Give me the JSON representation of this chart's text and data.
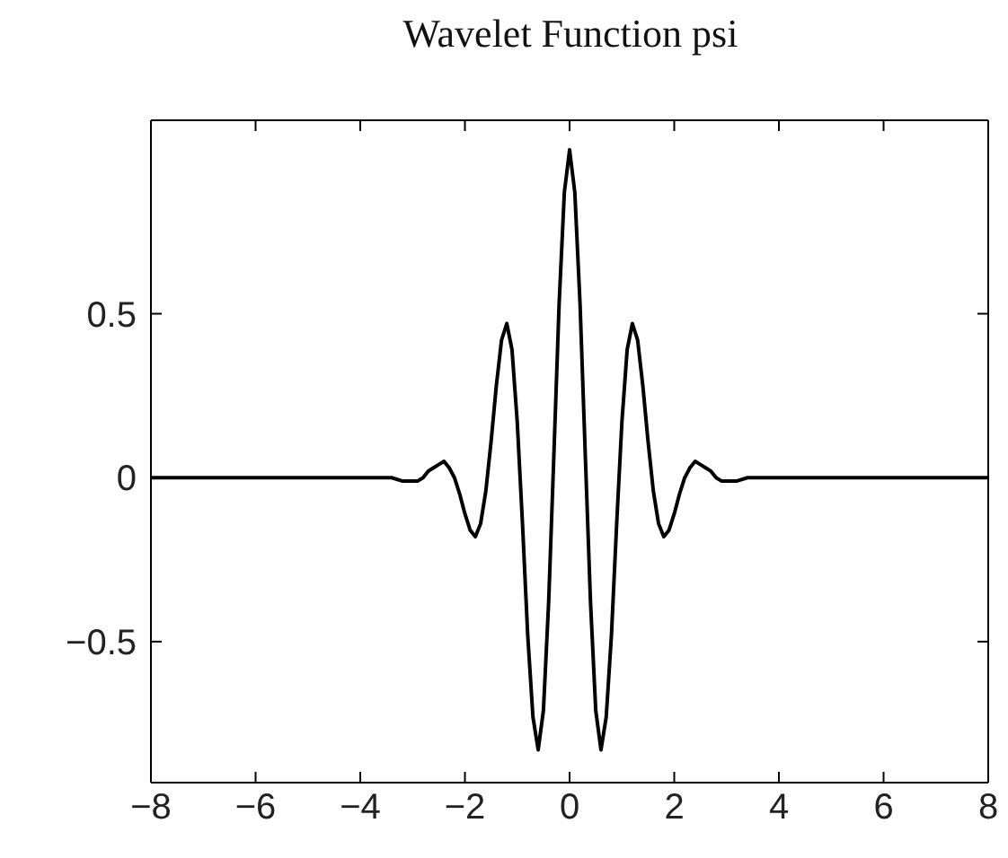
{
  "chart_data": {
    "type": "line",
    "title": "Wavelet Function psi",
    "x": [
      -8,
      -3.6,
      -3.4,
      -3.2,
      -3,
      -2.9,
      -2.8,
      -2.7,
      -2.6,
      -2.5,
      -2.4,
      -2.3,
      -2.2,
      -2.1,
      -2,
      -1.9,
      -1.8,
      -1.7,
      -1.6,
      -1.5,
      -1.4,
      -1.3,
      -1.2,
      -1.1,
      -1,
      -0.9,
      -0.8,
      -0.7,
      -0.6,
      -0.5,
      -0.4,
      -0.3,
      -0.2,
      -0.1,
      0,
      0.1,
      0.2,
      0.3,
      0.4,
      0.5,
      0.6,
      0.7,
      0.8,
      0.9,
      1,
      1.1,
      1.2,
      1.3,
      1.4,
      1.5,
      1.6,
      1.7,
      1.8,
      1.9,
      2,
      2.1,
      2.2,
      2.3,
      2.4,
      2.5,
      2.6,
      2.7,
      2.8,
      2.9,
      3,
      3.2,
      3.4,
      3.6,
      8
    ],
    "series": [
      {
        "color": "#000000",
        "values": [
          0,
          0,
          0,
          -0.01,
          -0.01,
          -0.01,
          0,
          0.02,
          0.03,
          0.04,
          0.05,
          0.03,
          0,
          -0.05,
          -0.11,
          -0.16,
          -0.18,
          -0.14,
          -0.04,
          0.11,
          0.28,
          0.42,
          0.47,
          0.39,
          0.17,
          -0.14,
          -0.48,
          -0.73,
          -0.83,
          -0.71,
          -0.38,
          0.07,
          0.53,
          0.87,
          1,
          0.87,
          0.53,
          0.07,
          -0.38,
          -0.71,
          -0.83,
          -0.73,
          -0.48,
          -0.14,
          0.17,
          0.39,
          0.47,
          0.42,
          0.28,
          0.11,
          -0.04,
          -0.14,
          -0.18,
          -0.16,
          -0.11,
          -0.05,
          0,
          0.03,
          0.05,
          0.04,
          0.03,
          0.02,
          0,
          -0.01,
          -0.01,
          -0.01,
          0,
          0,
          0
        ]
      }
    ],
    "xlim": [
      -8,
      8
    ],
    "xticks": [
      -8,
      -6,
      -4,
      -2,
      0,
      2,
      4,
      6,
      8
    ],
    "ylim": [
      -0.93,
      1.09
    ],
    "yticks": [
      -0.5,
      0,
      0.5
    ],
    "grid": false,
    "marker": "none",
    "line_style": "solid"
  }
}
